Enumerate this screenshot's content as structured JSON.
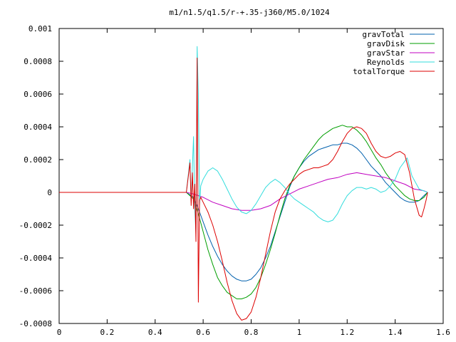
{
  "chart_data": {
    "type": "line",
    "title": "m1/n1.5/q1.5/r-+.35-j360/M5.0/1024",
    "xlabel": "",
    "ylabel": "",
    "xlim": [
      0,
      1.6
    ],
    "ylim": [
      -0.0008,
      0.001
    ],
    "grid": false,
    "legend_position": "top-right",
    "x_ticks": [
      "0",
      "0.2",
      "0.4",
      "0.6",
      "0.8",
      "1",
      "1.2",
      "1.4",
      "1.6"
    ],
    "x_tick_values": [
      0,
      0.2,
      0.4,
      0.6,
      0.8,
      1.0,
      1.2,
      1.4,
      1.6
    ],
    "y_ticks": [
      "0.001",
      "0.0008",
      "0.0006",
      "0.0004",
      "0.0002",
      "0",
      "-0.0002",
      "-0.0004",
      "-0.0006",
      "-0.0008"
    ],
    "y_tick_values": [
      0.001,
      0.0008,
      0.0006,
      0.0004,
      0.0002,
      0,
      -0.0002,
      -0.0004,
      -0.0006,
      -0.0008
    ],
    "series": [
      {
        "name": "gravTotal",
        "color": "#0060ad",
        "points": [
          [
            0,
            0
          ],
          [
            0.53,
            0
          ],
          [
            0.56,
            -3e-05
          ],
          [
            0.58,
            -0.0001
          ],
          [
            0.6,
            -0.00018
          ],
          [
            0.62,
            -0.00026
          ],
          [
            0.64,
            -0.00033
          ],
          [
            0.66,
            -0.00039
          ],
          [
            0.68,
            -0.00044
          ],
          [
            0.7,
            -0.00048
          ],
          [
            0.72,
            -0.00051
          ],
          [
            0.74,
            -0.00053
          ],
          [
            0.76,
            -0.00054
          ],
          [
            0.78,
            -0.00054
          ],
          [
            0.8,
            -0.00053
          ],
          [
            0.82,
            -0.0005
          ],
          [
            0.84,
            -0.00046
          ],
          [
            0.86,
            -0.0004
          ],
          [
            0.88,
            -0.00033
          ],
          [
            0.9,
            -0.00024
          ],
          [
            0.92,
            -0.00015
          ],
          [
            0.94,
            -6e-05
          ],
          [
            0.96,
            3e-05
          ],
          [
            0.98,
            0.0001
          ],
          [
            1.0,
            0.00015
          ],
          [
            1.02,
            0.00019
          ],
          [
            1.04,
            0.00022
          ],
          [
            1.06,
            0.00024
          ],
          [
            1.08,
            0.00026
          ],
          [
            1.1,
            0.00027
          ],
          [
            1.12,
            0.00028
          ],
          [
            1.14,
            0.00029
          ],
          [
            1.16,
            0.00029
          ],
          [
            1.18,
            0.0003
          ],
          [
            1.2,
            0.0003
          ],
          [
            1.22,
            0.00029
          ],
          [
            1.24,
            0.00027
          ],
          [
            1.26,
            0.00024
          ],
          [
            1.28,
            0.0002
          ],
          [
            1.3,
            0.00016
          ],
          [
            1.32,
            0.00013
          ],
          [
            1.34,
            0.0001
          ],
          [
            1.36,
            6e-05
          ],
          [
            1.38,
            3e-05
          ],
          [
            1.4,
            0.0
          ],
          [
            1.42,
            -3e-05
          ],
          [
            1.44,
            -5e-05
          ],
          [
            1.46,
            -6e-05
          ],
          [
            1.48,
            -6e-05
          ],
          [
            1.5,
            -5e-05
          ],
          [
            1.52,
            -2e-05
          ],
          [
            1.535,
            0.0
          ]
        ]
      },
      {
        "name": "gravDisk",
        "color": "#009e00",
        "points": [
          [
            0,
            0
          ],
          [
            0.53,
            0
          ],
          [
            0.56,
            -4e-05
          ],
          [
            0.58,
            -0.00013
          ],
          [
            0.6,
            -0.00024
          ],
          [
            0.62,
            -0.00035
          ],
          [
            0.64,
            -0.00044
          ],
          [
            0.66,
            -0.00052
          ],
          [
            0.68,
            -0.00057
          ],
          [
            0.7,
            -0.00061
          ],
          [
            0.72,
            -0.00063
          ],
          [
            0.74,
            -0.00065
          ],
          [
            0.76,
            -0.00065
          ],
          [
            0.78,
            -0.00064
          ],
          [
            0.8,
            -0.00062
          ],
          [
            0.82,
            -0.00058
          ],
          [
            0.84,
            -0.00052
          ],
          [
            0.86,
            -0.00044
          ],
          [
            0.88,
            -0.00035
          ],
          [
            0.9,
            -0.00025
          ],
          [
            0.92,
            -0.00014
          ],
          [
            0.94,
            -4e-05
          ],
          [
            0.96,
            4e-05
          ],
          [
            0.98,
            0.0001
          ],
          [
            1.0,
            0.00015
          ],
          [
            1.02,
            0.0002
          ],
          [
            1.04,
            0.00024
          ],
          [
            1.06,
            0.00028
          ],
          [
            1.08,
            0.00032
          ],
          [
            1.1,
            0.00035
          ],
          [
            1.12,
            0.00037
          ],
          [
            1.14,
            0.00039
          ],
          [
            1.16,
            0.0004
          ],
          [
            1.18,
            0.00041
          ],
          [
            1.2,
            0.0004
          ],
          [
            1.22,
            0.0004
          ],
          [
            1.24,
            0.00038
          ],
          [
            1.26,
            0.00035
          ],
          [
            1.28,
            0.00031
          ],
          [
            1.3,
            0.00026
          ],
          [
            1.32,
            0.00021
          ],
          [
            1.34,
            0.00017
          ],
          [
            1.36,
            0.00012
          ],
          [
            1.38,
            8e-05
          ],
          [
            1.4,
            4e-05
          ],
          [
            1.42,
            1e-05
          ],
          [
            1.44,
            -2e-05
          ],
          [
            1.46,
            -4e-05
          ],
          [
            1.48,
            -5e-05
          ],
          [
            1.5,
            -5e-05
          ],
          [
            1.52,
            -3e-05
          ],
          [
            1.535,
            0.0
          ]
        ]
      },
      {
        "name": "gravStar",
        "color": "#c000c0",
        "points": [
          [
            0,
            0
          ],
          [
            0.53,
            0
          ],
          [
            0.56,
            -1e-05
          ],
          [
            0.6,
            -3e-05
          ],
          [
            0.64,
            -6e-05
          ],
          [
            0.68,
            -8e-05
          ],
          [
            0.72,
            -0.0001
          ],
          [
            0.76,
            -0.00011
          ],
          [
            0.8,
            -0.00011
          ],
          [
            0.84,
            -0.0001
          ],
          [
            0.88,
            -8e-05
          ],
          [
            0.92,
            -4e-05
          ],
          [
            0.96,
            -1e-05
          ],
          [
            1.0,
            2e-05
          ],
          [
            1.04,
            4e-05
          ],
          [
            1.08,
            6e-05
          ],
          [
            1.12,
            8e-05
          ],
          [
            1.16,
            9e-05
          ],
          [
            1.2,
            0.00011
          ],
          [
            1.24,
            0.00012
          ],
          [
            1.28,
            0.00011
          ],
          [
            1.32,
            0.0001
          ],
          [
            1.36,
            9e-05
          ],
          [
            1.4,
            7e-05
          ],
          [
            1.44,
            5e-05
          ],
          [
            1.48,
            2e-05
          ],
          [
            1.52,
            1e-05
          ],
          [
            1.535,
            0.0
          ]
        ]
      },
      {
        "name": "Reynolds",
        "color": "#33dddd",
        "points": [
          [
            0,
            0
          ],
          [
            0.53,
            0
          ],
          [
            0.545,
            0.0002
          ],
          [
            0.55,
            -5e-05
          ],
          [
            0.555,
            0.00015
          ],
          [
            0.56,
            0.00034
          ],
          [
            0.565,
            -0.0001
          ],
          [
            0.57,
            -0.00025
          ],
          [
            0.575,
            0.00089
          ],
          [
            0.58,
            0.0006
          ],
          [
            0.585,
            -8e-05
          ],
          [
            0.59,
            4e-05
          ],
          [
            0.6,
            8e-05
          ],
          [
            0.62,
            0.00013
          ],
          [
            0.64,
            0.00015
          ],
          [
            0.66,
            0.00013
          ],
          [
            0.68,
            8e-05
          ],
          [
            0.7,
            2e-05
          ],
          [
            0.72,
            -4e-05
          ],
          [
            0.74,
            -9e-05
          ],
          [
            0.76,
            -0.00012
          ],
          [
            0.78,
            -0.00013
          ],
          [
            0.8,
            -0.00011
          ],
          [
            0.82,
            -7e-05
          ],
          [
            0.84,
            -2e-05
          ],
          [
            0.86,
            3e-05
          ],
          [
            0.88,
            6e-05
          ],
          [
            0.9,
            8e-05
          ],
          [
            0.92,
            6e-05
          ],
          [
            0.94,
            3e-05
          ],
          [
            0.96,
            -1e-05
          ],
          [
            0.98,
            -4e-05
          ],
          [
            1.0,
            -6e-05
          ],
          [
            1.02,
            -8e-05
          ],
          [
            1.04,
            -0.0001
          ],
          [
            1.06,
            -0.00012
          ],
          [
            1.08,
            -0.00015
          ],
          [
            1.1,
            -0.00017
          ],
          [
            1.12,
            -0.00018
          ],
          [
            1.14,
            -0.00017
          ],
          [
            1.16,
            -0.00013
          ],
          [
            1.18,
            -7e-05
          ],
          [
            1.2,
            -2e-05
          ],
          [
            1.22,
            1e-05
          ],
          [
            1.24,
            3e-05
          ],
          [
            1.26,
            3e-05
          ],
          [
            1.28,
            2e-05
          ],
          [
            1.3,
            3e-05
          ],
          [
            1.32,
            2e-05
          ],
          [
            1.34,
            0.0
          ],
          [
            1.36,
            1e-05
          ],
          [
            1.38,
            4e-05
          ],
          [
            1.4,
            8e-05
          ],
          [
            1.42,
            0.00015
          ],
          [
            1.44,
            0.00019
          ],
          [
            1.45,
            0.00021
          ],
          [
            1.47,
            0.0001
          ],
          [
            1.5,
            2e-05
          ],
          [
            1.535,
            0.0
          ]
        ]
      },
      {
        "name": "totalTorque",
        "color": "#dd0000",
        "points": [
          [
            0,
            0
          ],
          [
            0.53,
            0
          ],
          [
            0.545,
            0.00018
          ],
          [
            0.55,
            -8e-05
          ],
          [
            0.555,
            0.00012
          ],
          [
            0.56,
            -0.0001
          ],
          [
            0.565,
            5e-05
          ],
          [
            0.57,
            -0.0003
          ],
          [
            0.575,
            0.00082
          ],
          [
            0.58,
            -0.00067
          ],
          [
            0.585,
            -5e-05
          ],
          [
            0.59,
            -3e-05
          ],
          [
            0.6,
            -6e-05
          ],
          [
            0.62,
            -0.00012
          ],
          [
            0.64,
            -0.0002
          ],
          [
            0.66,
            -0.0003
          ],
          [
            0.68,
            -0.00042
          ],
          [
            0.7,
            -0.00055
          ],
          [
            0.72,
            -0.00066
          ],
          [
            0.74,
            -0.00074
          ],
          [
            0.76,
            -0.00078
          ],
          [
            0.78,
            -0.00077
          ],
          [
            0.8,
            -0.00073
          ],
          [
            0.82,
            -0.00064
          ],
          [
            0.84,
            -0.00052
          ],
          [
            0.86,
            -0.00038
          ],
          [
            0.88,
            -0.00024
          ],
          [
            0.9,
            -0.00012
          ],
          [
            0.92,
            -4e-05
          ],
          [
            0.94,
            1e-05
          ],
          [
            0.96,
            5e-05
          ],
          [
            0.98,
            8e-05
          ],
          [
            1.0,
            0.00011
          ],
          [
            1.02,
            0.00013
          ],
          [
            1.04,
            0.00014
          ],
          [
            1.06,
            0.00015
          ],
          [
            1.08,
            0.00015
          ],
          [
            1.1,
            0.00016
          ],
          [
            1.12,
            0.00017
          ],
          [
            1.14,
            0.0002
          ],
          [
            1.16,
            0.00025
          ],
          [
            1.18,
            0.00031
          ],
          [
            1.2,
            0.00036
          ],
          [
            1.22,
            0.00039
          ],
          [
            1.24,
            0.0004
          ],
          [
            1.26,
            0.00039
          ],
          [
            1.28,
            0.00036
          ],
          [
            1.3,
            0.0003
          ],
          [
            1.32,
            0.00025
          ],
          [
            1.34,
            0.00022
          ],
          [
            1.36,
            0.00021
          ],
          [
            1.38,
            0.00022
          ],
          [
            1.4,
            0.00024
          ],
          [
            1.42,
            0.00025
          ],
          [
            1.44,
            0.00023
          ],
          [
            1.46,
            0.00012
          ],
          [
            1.48,
            -4e-05
          ],
          [
            1.5,
            -0.00014
          ],
          [
            1.51,
            -0.00015
          ],
          [
            1.52,
            -0.0001
          ],
          [
            1.53,
            -4e-05
          ],
          [
            1.535,
            0.0
          ]
        ]
      }
    ]
  }
}
